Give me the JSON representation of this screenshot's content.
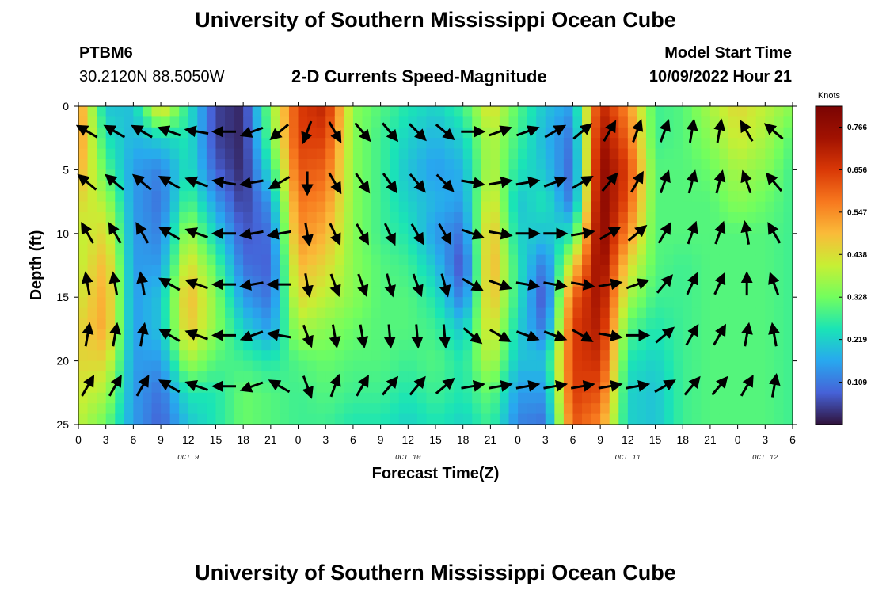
{
  "header": {
    "title": "University of Southern Mississippi Ocean Cube",
    "station_name": "PTBM6",
    "station_coords": "30.2120N  88.5050W",
    "plot_title": "2-D Currents Speed-Magnitude",
    "model_start_label": "Model Start Time",
    "model_start_value": "10/09/2022 Hour 21"
  },
  "footer": {
    "title": "University of Southern Mississippi Ocean Cube"
  },
  "chart_data": {
    "type": "heatmap",
    "xlabel": "Forecast Time(Z)",
    "ylabel": "Depth (ft)",
    "x_tick_labels": [
      "0",
      "3",
      "6",
      "9",
      "12",
      "15",
      "18",
      "21",
      "0",
      "3",
      "6",
      "9",
      "12",
      "15",
      "18",
      "21",
      "0",
      "3",
      "6",
      "9",
      "12",
      "15",
      "18",
      "21",
      "0",
      "3",
      "6"
    ],
    "day_labels": [
      {
        "text": "OCT 9",
        "tick_index": 4
      },
      {
        "text": "OCT 10",
        "tick_index": 12
      },
      {
        "text": "OCT 11",
        "tick_index": 20
      },
      {
        "text": "OCT 12",
        "tick_index": 25
      }
    ],
    "y_ticks": [
      0,
      5,
      10,
      15,
      20,
      25
    ],
    "ylim": [
      0,
      25
    ],
    "y_inverted": true,
    "colorbar": {
      "units": "Knots",
      "min": 0.0,
      "max": 0.82,
      "tick_labels": [
        "0.109",
        "0.219",
        "0.328",
        "0.438",
        "0.547",
        "0.656",
        "0.766"
      ],
      "colormap": [
        "#30123b",
        "#4662d8",
        "#28a8ef",
        "#1ae4b6",
        "#72fe5e",
        "#c7ef34",
        "#fabb39",
        "#f7781e",
        "#d93806",
        "#a11201",
        "#7a0403"
      ]
    },
    "depths": [
      0,
      2.5,
      5,
      7.5,
      10,
      12.5,
      15,
      17.5,
      20,
      22.5,
      25
    ],
    "speed_hours": [
      0,
      3,
      6,
      9,
      12,
      15,
      18,
      21,
      24,
      27,
      30,
      33,
      36,
      39,
      42,
      45,
      48,
      51,
      54,
      57,
      60,
      63,
      66,
      69,
      72,
      75,
      78
    ],
    "speed_knots": [
      [
        0.55,
        0.55,
        0.52,
        0.45,
        0.4,
        0.4,
        0.42,
        0.45,
        0.45,
        0.42,
        0.4
      ],
      [
        0.2,
        0.25,
        0.3,
        0.38,
        0.45,
        0.5,
        0.52,
        0.52,
        0.45,
        0.38,
        0.32
      ],
      [
        0.2,
        0.18,
        0.15,
        0.15,
        0.15,
        0.15,
        0.15,
        0.15,
        0.15,
        0.15,
        0.15
      ],
      [
        0.48,
        0.22,
        0.12,
        0.1,
        0.12,
        0.15,
        0.2,
        0.2,
        0.15,
        0.1,
        0.08
      ],
      [
        0.25,
        0.25,
        0.25,
        0.3,
        0.38,
        0.45,
        0.5,
        0.48,
        0.38,
        0.25,
        0.2
      ],
      [
        0.05,
        0.05,
        0.08,
        0.15,
        0.22,
        0.3,
        0.35,
        0.35,
        0.3,
        0.25,
        0.25
      ],
      [
        0.02,
        0.02,
        0.02,
        0.04,
        0.07,
        0.1,
        0.15,
        0.22,
        0.28,
        0.32,
        0.32
      ],
      [
        0.35,
        0.32,
        0.25,
        0.15,
        0.1,
        0.08,
        0.1,
        0.15,
        0.25,
        0.3,
        0.3
      ],
      [
        0.65,
        0.65,
        0.62,
        0.58,
        0.55,
        0.5,
        0.45,
        0.38,
        0.3,
        0.28,
        0.28
      ],
      [
        0.7,
        0.65,
        0.6,
        0.55,
        0.5,
        0.45,
        0.4,
        0.35,
        0.32,
        0.3,
        0.28
      ],
      [
        0.35,
        0.35,
        0.35,
        0.35,
        0.35,
        0.35,
        0.35,
        0.32,
        0.3,
        0.28,
        0.25
      ],
      [
        0.3,
        0.28,
        0.28,
        0.28,
        0.28,
        0.3,
        0.3,
        0.3,
        0.3,
        0.28,
        0.25
      ],
      [
        0.25,
        0.22,
        0.2,
        0.22,
        0.25,
        0.28,
        0.3,
        0.3,
        0.28,
        0.25,
        0.22
      ],
      [
        0.22,
        0.18,
        0.15,
        0.18,
        0.15,
        0.2,
        0.25,
        0.28,
        0.3,
        0.28,
        0.25
      ],
      [
        0.28,
        0.22,
        0.18,
        0.15,
        0.1,
        0.05,
        0.1,
        0.2,
        0.25,
        0.25,
        0.22
      ],
      [
        0.45,
        0.4,
        0.4,
        0.45,
        0.5,
        0.52,
        0.5,
        0.45,
        0.4,
        0.32,
        0.28
      ],
      [
        0.3,
        0.28,
        0.25,
        0.2,
        0.22,
        0.25,
        0.25,
        0.22,
        0.2,
        0.15,
        0.12
      ],
      [
        0.2,
        0.18,
        0.2,
        0.25,
        0.2,
        0.1,
        0.05,
        0.1,
        0.2,
        0.15,
        0.1
      ],
      [
        0.15,
        0.1,
        0.08,
        0.1,
        0.25,
        0.45,
        0.6,
        0.65,
        0.65,
        0.65,
        0.62
      ],
      [
        0.7,
        0.75,
        0.78,
        0.8,
        0.8,
        0.78,
        0.75,
        0.72,
        0.68,
        0.62,
        0.55
      ],
      [
        0.55,
        0.6,
        0.65,
        0.62,
        0.55,
        0.45,
        0.38,
        0.3,
        0.25,
        0.22,
        0.22
      ],
      [
        0.28,
        0.28,
        0.3,
        0.3,
        0.3,
        0.3,
        0.28,
        0.25,
        0.22,
        0.2,
        0.2
      ],
      [
        0.3,
        0.3,
        0.3,
        0.3,
        0.3,
        0.28,
        0.28,
        0.28,
        0.28,
        0.28,
        0.28
      ],
      [
        0.38,
        0.35,
        0.32,
        0.3,
        0.3,
        0.3,
        0.3,
        0.3,
        0.3,
        0.3,
        0.3
      ],
      [
        0.45,
        0.42,
        0.38,
        0.35,
        0.3,
        0.3,
        0.3,
        0.3,
        0.3,
        0.3,
        0.3
      ],
      [
        0.4,
        0.38,
        0.35,
        0.32,
        0.3,
        0.3,
        0.3,
        0.3,
        0.3,
        0.3,
        0.3
      ],
      [
        0.35,
        0.3,
        0.28,
        0.28,
        0.28,
        0.28,
        0.28,
        0.28,
        0.28,
        0.28,
        0.28
      ]
    ],
    "vector_hours": [
      1,
      4,
      7,
      10,
      13,
      16,
      19,
      22,
      25,
      28,
      31,
      34,
      37,
      40,
      43,
      46,
      49,
      52,
      55,
      58,
      61,
      64,
      67,
      70,
      73,
      76
    ],
    "vector_depths": [
      2,
      6,
      10,
      14,
      18,
      22
    ],
    "vector_direction_deg": [
      [
        300,
        310,
        330,
        350,
        10,
        30
      ],
      [
        300,
        310,
        330,
        350,
        10,
        30
      ],
      [
        300,
        310,
        330,
        350,
        10,
        30
      ],
      [
        290,
        300,
        300,
        300,
        300,
        300
      ],
      [
        280,
        290,
        290,
        290,
        290,
        290
      ],
      [
        270,
        280,
        270,
        270,
        270,
        270
      ],
      [
        250,
        260,
        260,
        260,
        250,
        250
      ],
      [
        230,
        240,
        260,
        270,
        280,
        300
      ],
      [
        200,
        180,
        170,
        170,
        160,
        160
      ],
      [
        150,
        150,
        155,
        160,
        170,
        20
      ],
      [
        140,
        145,
        150,
        160,
        170,
        30
      ],
      [
        140,
        145,
        155,
        165,
        175,
        40
      ],
      [
        135,
        140,
        150,
        160,
        175,
        40
      ],
      [
        130,
        135,
        150,
        165,
        175,
        50
      ],
      [
        90,
        100,
        110,
        120,
        130,
        80
      ],
      [
        70,
        80,
        100,
        110,
        120,
        80
      ],
      [
        70,
        80,
        90,
        100,
        110,
        80
      ],
      [
        60,
        70,
        90,
        100,
        110,
        80
      ],
      [
        50,
        60,
        80,
        100,
        120,
        80
      ],
      [
        30,
        40,
        60,
        80,
        100,
        80
      ],
      [
        20,
        30,
        50,
        70,
        90,
        80
      ],
      [
        20,
        20,
        30,
        40,
        50,
        60
      ],
      [
        10,
        15,
        20,
        25,
        30,
        40
      ],
      [
        10,
        15,
        20,
        25,
        30,
        40
      ],
      [
        330,
        340,
        350,
        0,
        10,
        30
      ],
      [
        310,
        320,
        330,
        340,
        350,
        10
      ]
    ]
  }
}
